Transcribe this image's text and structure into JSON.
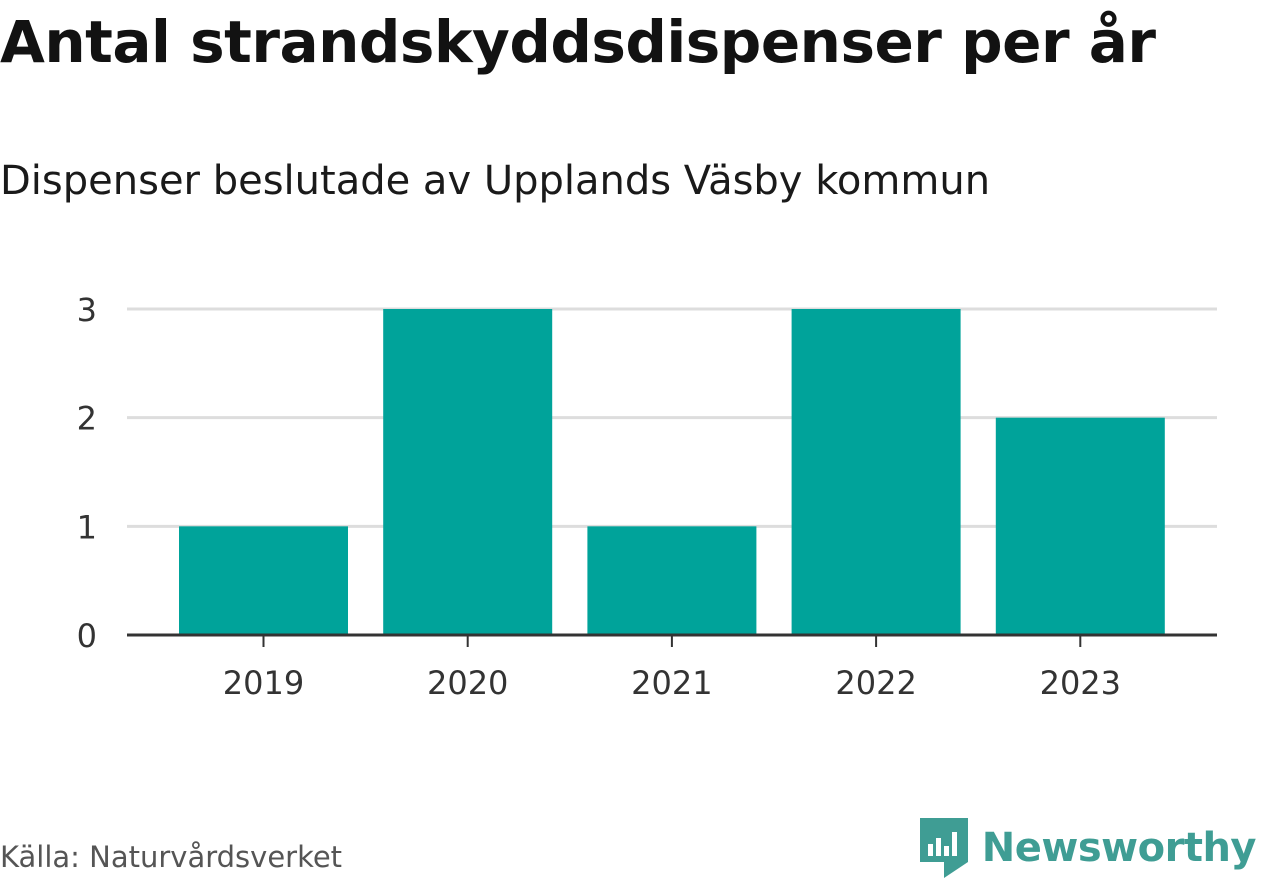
{
  "header": {
    "title": "Antal strandskyddsdispenser per år",
    "subtitle": "Dispenser beslutade av Upplands Väsby kommun"
  },
  "footer": {
    "source": "Källa: Naturvårdsverket",
    "brand": "Newsworthy"
  },
  "colors": {
    "bar": "#00a39a",
    "grid": "#dddddd",
    "axis": "#333333",
    "brand": "#3f9d94"
  },
  "icons": {
    "brand_logo": "newsworthy-logo-icon"
  },
  "chart_data": {
    "type": "bar",
    "title": "Antal strandskyddsdispenser per år",
    "subtitle": "Dispenser beslutade av Upplands Väsby kommun",
    "categories": [
      "2019",
      "2020",
      "2021",
      "2022",
      "2023"
    ],
    "values": [
      1,
      3,
      1,
      3,
      2
    ],
    "xlabel": "",
    "ylabel": "",
    "ylim": [
      0,
      3
    ],
    "yticks": [
      0,
      1,
      2,
      3
    ],
    "grid": true,
    "legend": "none"
  }
}
